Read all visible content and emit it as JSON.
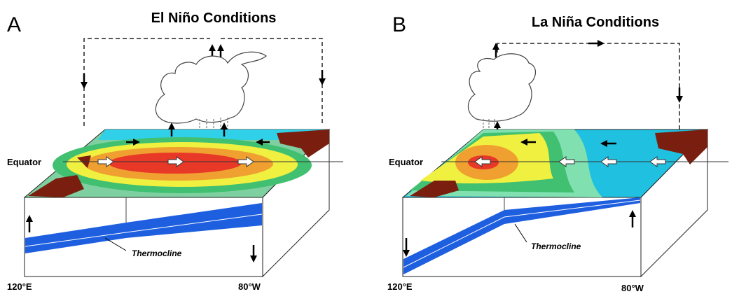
{
  "panels": [
    {
      "letter": "A",
      "title": "El Niño Conditions",
      "equator_label": "Equator",
      "thermocline_label": "Thermocline",
      "left_longitude": "120°E",
      "right_longitude": "80°W"
    },
    {
      "letter": "B",
      "title": "La Niña Conditions",
      "equator_label": "Equator",
      "thermocline_label": "Thermocline",
      "left_longitude": "120°E",
      "right_longitude": "80°W"
    }
  ]
}
